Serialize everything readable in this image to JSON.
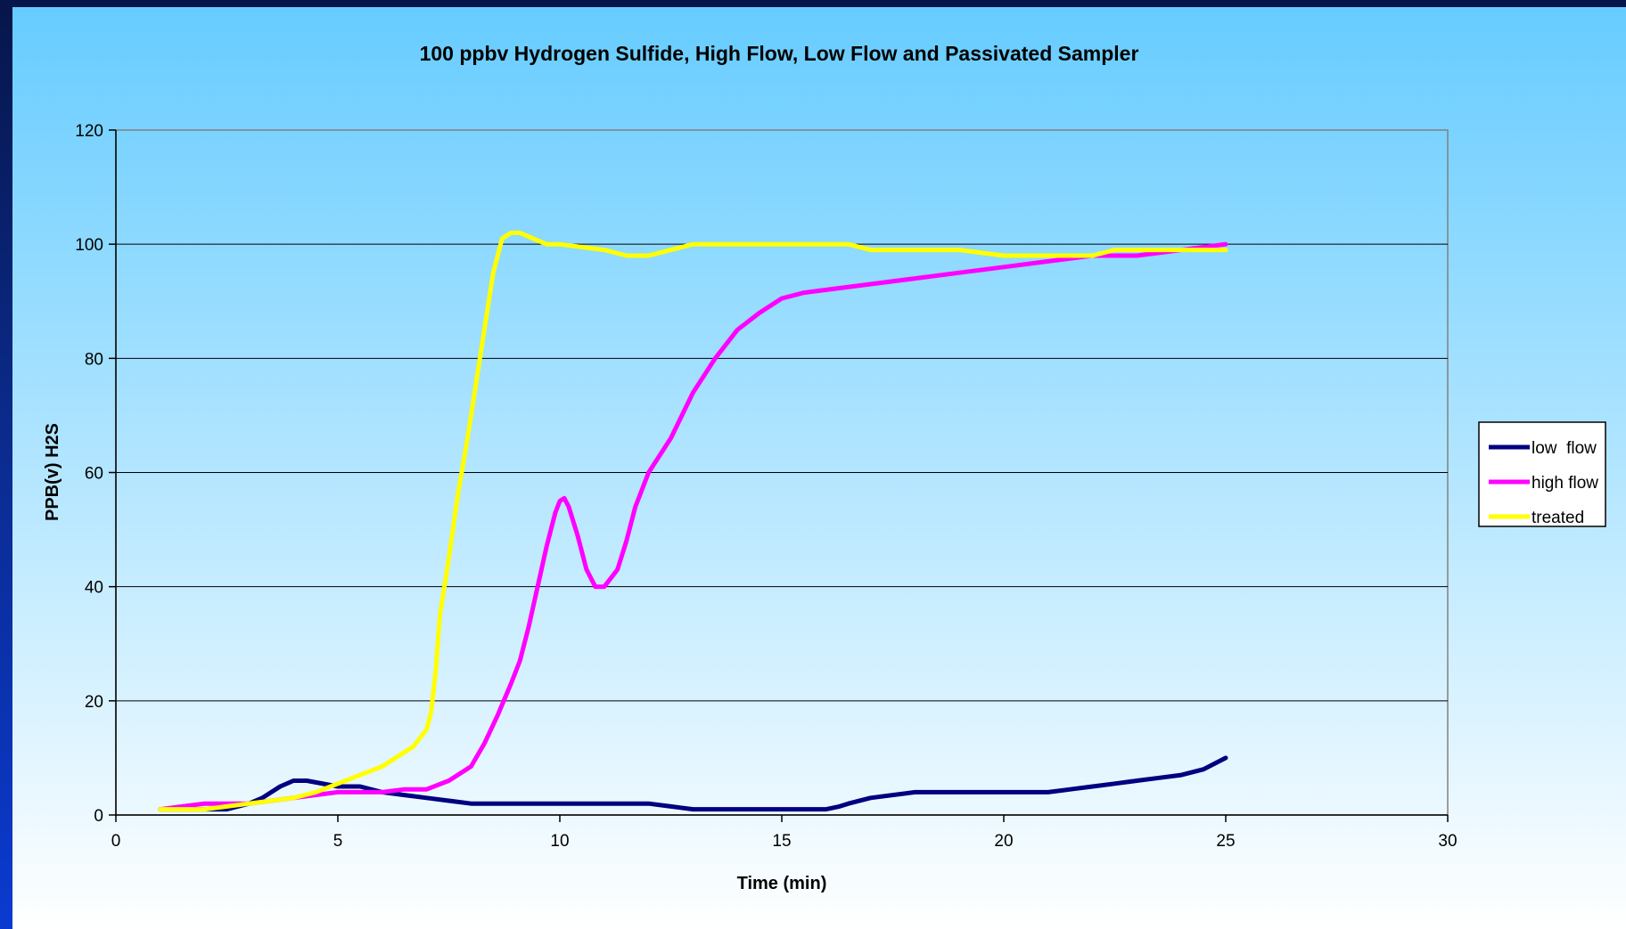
{
  "chart_data": {
    "type": "line",
    "title": "100 ppbv Hydrogen Sulfide, High Flow, Low Flow and Passivated Sampler",
    "xlabel": "Time (min)",
    "ylabel": "PPB(v) H2S",
    "xlim": [
      0,
      30
    ],
    "ylim": [
      0,
      120
    ],
    "x_ticks": [
      "0",
      "5",
      "10",
      "15",
      "20",
      "25",
      "30"
    ],
    "y_ticks": [
      "0",
      "20",
      "40",
      "60",
      "80",
      "100",
      "120"
    ],
    "grid": "horizontal",
    "legend_position": "right",
    "colors": {
      "panel_top": "#66ccff",
      "panel_bottom": "#ffffff",
      "grid": "#000000",
      "axis": "#808080"
    },
    "series": [
      {
        "name": "low  flow",
        "color": "#000080",
        "x": [
          1,
          2,
          2.5,
          3,
          3.3,
          3.7,
          4,
          4.3,
          5,
          5.5,
          6,
          6.5,
          7,
          7.5,
          8,
          9,
          10,
          11,
          12,
          12.5,
          13,
          14,
          15,
          16,
          16.3,
          16.5,
          17,
          18,
          19,
          20,
          21,
          21.5,
          22,
          22.5,
          23,
          23.5,
          24,
          24.5,
          25
        ],
        "y": [
          1,
          1,
          1,
          2,
          3,
          5,
          6,
          6,
          5,
          5,
          4,
          3.5,
          3,
          2.5,
          2,
          2,
          2,
          2,
          2,
          1.5,
          1,
          1,
          1,
          1,
          1.5,
          2,
          3,
          4,
          4,
          4,
          4,
          4.5,
          5,
          5.5,
          6,
          6.5,
          7,
          8,
          10
        ]
      },
      {
        "name": "high flow",
        "color": "#ff00ff",
        "x": [
          1,
          1.5,
          2,
          3,
          4,
          5,
          5.5,
          6,
          6.5,
          7,
          7.5,
          8,
          8.3,
          8.6,
          8.9,
          9.1,
          9.3,
          9.5,
          9.7,
          9.9,
          10,
          10.1,
          10.2,
          10.4,
          10.6,
          10.8,
          11,
          11.1,
          11.3,
          11.5,
          11.7,
          12,
          12.5,
          13,
          13.5,
          14,
          14.5,
          15,
          15.5,
          16,
          17,
          18,
          19,
          20,
          21,
          22,
          23,
          24,
          25
        ],
        "y": [
          1,
          1.5,
          2,
          2,
          3,
          4,
          4,
          4,
          4.5,
          4.5,
          6,
          8.5,
          12.5,
          17.5,
          23,
          27,
          33,
          40,
          47,
          53,
          55,
          55.5,
          54,
          49,
          43,
          40,
          40,
          41,
          43,
          48,
          54,
          60,
          66,
          74,
          80,
          85,
          88,
          90.5,
          91.5,
          92,
          93,
          94,
          95,
          96,
          97,
          98,
          98,
          99,
          100
        ]
      },
      {
        "name": "treated",
        "color": "#ffff00",
        "x": [
          1,
          1.5,
          2,
          2.5,
          3,
          4,
          4.5,
          5,
          5.5,
          6,
          6.3,
          6.7,
          7,
          7.1,
          7.2,
          7.3,
          7.5,
          7.7,
          7.9,
          8.1,
          8.3,
          8.5,
          8.7,
          8.9,
          9.1,
          9.4,
          9.7,
          10,
          11,
          11.5,
          12,
          12.5,
          13,
          14,
          15,
          16,
          16.5,
          17,
          18,
          19,
          20,
          21,
          22,
          22.5,
          23,
          24,
          25
        ],
        "y": [
          1,
          1,
          1,
          1.5,
          2,
          3,
          4,
          5.5,
          7,
          8.5,
          10,
          12,
          15,
          18,
          25,
          35,
          45,
          56,
          65,
          75,
          85,
          95,
          101,
          102,
          102,
          101,
          100,
          100,
          99,
          98,
          98,
          99,
          100,
          100,
          100,
          100,
          100,
          99,
          99,
          99,
          98,
          98,
          98,
          99,
          99,
          99,
          99
        ]
      }
    ]
  }
}
